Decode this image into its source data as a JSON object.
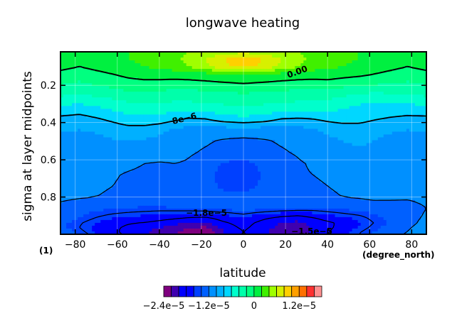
{
  "chart_data": {
    "type": "heatmap",
    "title": "longwave heating",
    "xlabel": "latitude",
    "ylabel": "sigma at layer midpoints",
    "x_unit_label": "(degree_north)",
    "y_unit_label": "(1)",
    "xlim": [
      -87,
      87
    ],
    "ylim": [
      1.0,
      0.02
    ],
    "x_ticks": [
      -80,
      -60,
      -40,
      -20,
      0,
      20,
      40,
      60,
      80
    ],
    "x_tick_labels": [
      "−80",
      "−60",
      "−40",
      "−20",
      "0",
      "20",
      "40",
      "60",
      "80"
    ],
    "y_ticks": [
      0.2,
      0.4,
      0.6,
      0.8
    ],
    "y_tick_labels": [
      "0.2",
      "0.4",
      "0.6",
      "0.8"
    ],
    "grid": true,
    "x": [
      -87,
      -78,
      -70,
      -62,
      -55,
      -47,
      -40,
      -33,
      -26,
      -18,
      -10,
      0,
      10,
      18,
      26,
      33,
      40,
      47,
      55,
      62,
      70,
      78,
      87
    ],
    "y": [
      0.02,
      0.06,
      0.1,
      0.14,
      0.2,
      0.26,
      0.32,
      0.38,
      0.44,
      0.5,
      0.56,
      0.62,
      0.68,
      0.74,
      0.8,
      0.86,
      0.91,
      0.94,
      0.965,
      0.985,
      1.0
    ],
    "z": [
      [
        2e-06,
        1e-06,
        5e-07,
        1e-06,
        2e-06,
        2.5e-06,
        3e-06,
        3.5e-06,
        4e-06,
        4.5e-06,
        5e-06,
        5.5e-06,
        5e-06,
        4.5e-06,
        4e-06,
        3.5e-06,
        3e-06,
        2.5e-06,
        2e-06,
        1e-06,
        5e-07,
        1e-06,
        2e-06
      ],
      [
        1e-06,
        5e-07,
        5e-07,
        1.5e-06,
        2e-06,
        2.5e-06,
        3e-06,
        3.5e-06,
        4.5e-06,
        6e-06,
        8e-06,
        9e-06,
        8e-06,
        6e-06,
        4.5e-06,
        3.5e-06,
        3e-06,
        2.5e-06,
        2e-06,
        1.5e-06,
        5e-07,
        5e-07,
        1e-06
      ],
      [
        5e-07,
        0.0,
        5e-07,
        1e-06,
        1.5e-06,
        2e-06,
        2.5e-06,
        3e-06,
        4e-06,
        5.5e-06,
        7.5e-06,
        8.5e-06,
        7.5e-06,
        5.5e-06,
        4e-06,
        3e-06,
        2.5e-06,
        2e-06,
        1.5e-06,
        1e-06,
        5e-07,
        0.0,
        5e-07
      ],
      [
        -5e-07,
        -1e-06,
        -5e-07,
        0.0,
        5e-07,
        8e-07,
        1e-06,
        1e-06,
        1.2e-06,
        1.5e-06,
        2e-06,
        2.5e-06,
        2e-06,
        1.5e-06,
        1.2e-06,
        1e-06,
        1e-06,
        8e-07,
        5e-07,
        0.0,
        -5e-07,
        -1e-06,
        -5e-07
      ],
      [
        -2e-06,
        -2.5e-06,
        -2e-06,
        -1.5e-06,
        -1e-06,
        -8e-07,
        -1e-06,
        -1.2e-06,
        -1.2e-06,
        -1e-06,
        -8e-07,
        -5e-07,
        -8e-07,
        -1e-06,
        -1.2e-06,
        -1.2e-06,
        -1e-06,
        -1.5e-06,
        -2e-06,
        -2e-06,
        -2.5e-06,
        -2.5e-06,
        -2e-06
      ],
      [
        -4e-06,
        -4.5e-06,
        -4e-06,
        -3.5e-06,
        -3e-06,
        -2.8e-06,
        -3e-06,
        -3.2e-06,
        -3.2e-06,
        -3e-06,
        -2.8e-06,
        -2.5e-06,
        -2.8e-06,
        -3e-06,
        -3.2e-06,
        -3.2e-06,
        -3.5e-06,
        -4e-06,
        -4.5e-06,
        -5e-06,
        -4.5e-06,
        -4.5e-06,
        -4e-06
      ],
      [
        -6.5e-06,
        -6.8e-06,
        -6.2e-06,
        -5.5e-06,
        -5e-06,
        -4.8e-06,
        -4.8e-06,
        -5e-06,
        -5e-06,
        -4.8e-06,
        -4.5e-06,
        -4.2e-06,
        -4.5e-06,
        -4.8e-06,
        -5e-06,
        -5e-06,
        -5.2e-06,
        -5.8e-06,
        -6.5e-06,
        -7e-06,
        -6.8e-06,
        -6.8e-06,
        -6.5e-06
      ],
      [
        -8.5e-06,
        -8.8e-06,
        -8.2e-06,
        -7.5e-06,
        -6.8e-06,
        -6.5e-06,
        -6.8e-06,
        -7.5e-06,
        -8.2e-06,
        -8e-06,
        -7e-06,
        -6.5e-06,
        -7e-06,
        -8e-06,
        -8.2e-06,
        -8e-06,
        -7.5e-06,
        -7.2e-06,
        -7.2e-06,
        -7.8e-06,
        -8.2e-06,
        -8.5e-06,
        -8.5e-06
      ],
      [
        -9.8e-06,
        -1e-05,
        -9.8e-06,
        -9.2e-06,
        -8.8e-06,
        -9e-06,
        -9.5e-06,
        -1.02e-05,
        -1.08e-05,
        -1.1e-05,
        -1.1e-05,
        -1.08e-05,
        -1.1e-05,
        -1.12e-05,
        -1.08e-05,
        -1.02e-05,
        -9.5e-06,
        -9.2e-06,
        -9.2e-06,
        -9.5e-06,
        -9.8e-06,
        -1e-05,
        -9.8e-06
      ],
      [
        -1.05e-05,
        -1.08e-05,
        -1.05e-05,
        -1.02e-05,
        -1e-05,
        -1.02e-05,
        -1.05e-05,
        -1.1e-05,
        -1.15e-05,
        -1.18e-05,
        -1.22e-05,
        -1.25e-05,
        -1.22e-05,
        -1.18e-05,
        -1.15e-05,
        -1.1e-05,
        -1.05e-05,
        -1e-05,
        -9.8e-06,
        -1e-05,
        -1.05e-05,
        -1.08e-05,
        -1.05e-05
      ],
      [
        -1.08e-05,
        -1.1e-05,
        -1.08e-05,
        -1.06e-05,
        -1.05e-05,
        -1.06e-05,
        -1.08e-05,
        -1.12e-05,
        -1.18e-05,
        -1.22e-05,
        -1.25e-05,
        -1.3e-05,
        -1.25e-05,
        -1.22e-05,
        -1.18e-05,
        -1.12e-05,
        -1.08e-05,
        -1.04e-05,
        -1.02e-05,
        -1.04e-05,
        -1.08e-05,
        -1.1e-05,
        -1.08e-05
      ],
      [
        -1.1e-05,
        -1.12e-05,
        -1.12e-05,
        -1.12e-05,
        -1.15e-05,
        -1.2e-05,
        -1.22e-05,
        -1.2e-05,
        -1.22e-05,
        -1.28e-05,
        -1.42e-05,
        -1.45e-05,
        -1.35e-05,
        -1.28e-05,
        -1.22e-05,
        -1.18e-05,
        -1.15e-05,
        -1.12e-05,
        -1.1e-05,
        -1.1e-05,
        -1.12e-05,
        -1.12e-05,
        -1.1e-05
      ],
      [
        -1.12e-05,
        -1.14e-05,
        -1.15e-05,
        -1.18e-05,
        -1.22e-05,
        -1.25e-05,
        -1.25e-05,
        -1.22e-05,
        -1.22e-05,
        -1.3e-05,
        -1.48e-05,
        -1.5e-05,
        -1.38e-05,
        -1.28e-05,
        -1.22e-05,
        -1.2e-05,
        -1.18e-05,
        -1.15e-05,
        -1.12e-05,
        -1.1e-05,
        -1.12e-05,
        -1.14e-05,
        -1.12e-05
      ],
      [
        -1.14e-05,
        -1.16e-05,
        -1.18e-05,
        -1.2e-05,
        -1.24e-05,
        -1.27e-05,
        -1.28e-05,
        -1.26e-05,
        -1.24e-05,
        -1.3e-05,
        -1.45e-05,
        -1.48e-05,
        -1.35e-05,
        -1.28e-05,
        -1.25e-05,
        -1.22e-05,
        -1.2e-05,
        -1.18e-05,
        -1.15e-05,
        -1.12e-05,
        -1.14e-05,
        -1.16e-05,
        -1.14e-05
      ],
      [
        -1.16e-05,
        -1.18e-05,
        -1.2e-05,
        -1.22e-05,
        -1.25e-05,
        -1.28e-05,
        -1.3e-05,
        -1.3e-05,
        -1.28e-05,
        -1.3e-05,
        -1.32e-05,
        -1.35e-05,
        -1.3e-05,
        -1.28e-05,
        -1.26e-05,
        -1.24e-05,
        -1.22e-05,
        -1.2e-05,
        -1.18e-05,
        -1.15e-05,
        -1.16e-05,
        -1.18e-05,
        -1.16e-05
      ],
      [
        -1.25e-05,
        -1.32e-05,
        -1.36e-05,
        -1.38e-05,
        -1.4e-05,
        -1.42e-05,
        -1.42e-05,
        -1.4e-05,
        -1.38e-05,
        -1.36e-05,
        -1.35e-05,
        -1.32e-05,
        -1.34e-05,
        -1.36e-05,
        -1.38e-05,
        -1.4e-05,
        -1.38e-05,
        -1.36e-05,
        -1.34e-05,
        -1.32e-05,
        -1.3e-05,
        -1.26e-05,
        -1.2e-05
      ],
      [
        -1.3e-05,
        -1.4e-05,
        -1.5e-05,
        -1.58e-05,
        -1.62e-05,
        -1.65e-05,
        -1.7e-05,
        -1.75e-05,
        -1.8e-05,
        -1.82e-05,
        -1.7e-05,
        -1.6e-05,
        -1.75e-05,
        -1.85e-05,
        -1.9e-05,
        -1.8e-05,
        -1.7e-05,
        -1.62e-05,
        -1.55e-05,
        -1.45e-05,
        -1.35e-05,
        -1.25e-05,
        -1.18e-05
      ],
      [
        -1.35e-05,
        -1.48e-05,
        -1.6e-05,
        -1.7e-05,
        -1.78e-05,
        -1.82e-05,
        -1.88e-05,
        -1.95e-05,
        -2e-05,
        -2.05e-05,
        -1.85e-05,
        -1.7e-05,
        -1.9e-05,
        -2e-05,
        -2.05e-05,
        -1.95e-05,
        -1.85e-05,
        -1.75e-05,
        -1.62e-05,
        -1.5e-05,
        -1.38e-05,
        -1.25e-05,
        -1.15e-05
      ],
      [
        -1.35e-05,
        -1.5e-05,
        -1.65e-05,
        -1.75e-05,
        -1.85e-05,
        -1.92e-05,
        -2e-05,
        -2.08e-05,
        -2.15e-05,
        -2.25e-05,
        -1.95e-05,
        -1.75e-05,
        -1.95e-05,
        -2.05e-05,
        -2.1e-05,
        -1.98e-05,
        -1.85e-05,
        -1.72e-05,
        -1.58e-05,
        -1.45e-05,
        -1.32e-05,
        -1.22e-05,
        -1.12e-05
      ],
      [
        -1.3e-05,
        -1.45e-05,
        -1.62e-05,
        -1.75e-05,
        -1.88e-05,
        -1.98e-05,
        -2.08e-05,
        -2.18e-05,
        -2.3e-05,
        -2.42e-05,
        -2.05e-05,
        -1.8e-05,
        -1.98e-05,
        -2.08e-05,
        -2.12e-05,
        -1.98e-05,
        -1.82e-05,
        -1.68e-05,
        -1.52e-05,
        -1.4e-05,
        -1.28e-05,
        -1.2e-05,
        -1.1e-05
      ],
      [
        -1.25e-05,
        -1.4e-05,
        -1.58e-05,
        -1.72e-05,
        -1.85e-05,
        -1.95e-05,
        -2.05e-05,
        -2.15e-05,
        -2.28e-05,
        -2.38e-05,
        -2e-05,
        -1.78e-05,
        -1.95e-05,
        -2.05e-05,
        -2.08e-05,
        -1.95e-05,
        -1.8e-05,
        -1.65e-05,
        -1.5e-05,
        -1.38e-05,
        -1.26e-05,
        -1.18e-05,
        -1.08e-05
      ]
    ],
    "contour_levels": [
      -2.4e-05,
      -2.2e-05,
      -2e-05,
      -1.8e-05,
      -1.6e-05,
      -1.4e-05,
      -1.2e-05,
      -1e-05,
      -8e-06,
      -6e-06,
      -4e-06,
      -2e-06,
      0,
      2e-06,
      4e-06,
      6e-06,
      8e-06,
      1e-05,
      1.2e-05,
      1.4e-05,
      1.6e-05,
      1.8e-05
    ],
    "colorbar": {
      "colors": [
        "#7f007f",
        "#3f00af",
        "#0000ff",
        "#0000ff",
        "#0040ff",
        "#0060ff",
        "#0090ff",
        "#00b0ff",
        "#00d7ff",
        "#00ffcc",
        "#00ffaa",
        "#00ff80",
        "#00f040",
        "#40f000",
        "#9fff00",
        "#d7f000",
        "#ffd000",
        "#ffa000",
        "#ff7000",
        "#ff3030",
        "#ff9090"
      ],
      "tick_labels": [
        "−2.4e−5",
        "−1.2e−5",
        "0",
        "1.2e−5"
      ],
      "tick_values": [
        -2.4e-05,
        -1.2e-05,
        0,
        1.2e-05
      ]
    },
    "contour_labels": [
      "0.00",
      "8e−6",
      "−1.8e−5",
      "−1.5e−5"
    ]
  }
}
